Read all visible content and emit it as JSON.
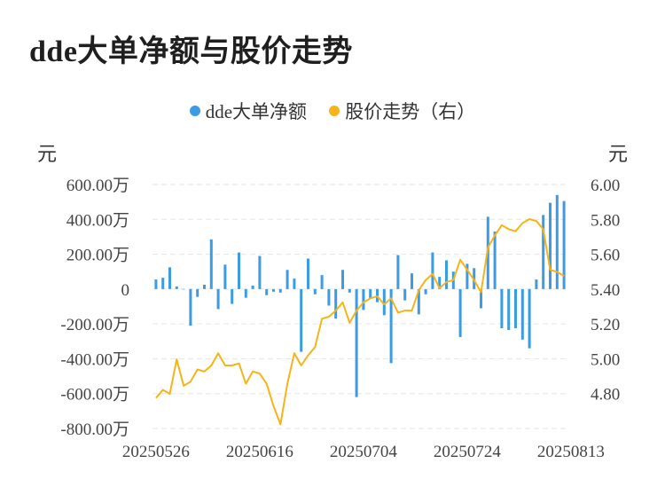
{
  "title": "dde大单净额与股价走势",
  "legend": [
    {
      "label": "dde大单净额",
      "color": "#3b9be3"
    },
    {
      "label": "股价走势（右）",
      "color": "#f4b41a"
    }
  ],
  "chart_data": {
    "type": "bar",
    "title": "dde大单净额与股价走势",
    "left_axis_unit": "元",
    "right_axis_unit": "元",
    "left_ylim": [
      -800,
      600
    ],
    "right_ylim": [
      4.8,
      6.0
    ],
    "left_ticks": [
      "600.00万",
      "400.00万",
      "200.00万",
      "0",
      "-200.00万",
      "-400.00万",
      "-600.00万",
      "-800.00万"
    ],
    "right_ticks": [
      "6.00",
      "5.80",
      "5.60",
      "5.40",
      "5.20",
      "5.00",
      "4.80"
    ],
    "x_tick_labels": [
      "20250526",
      "20250616",
      "20250704",
      "20250724",
      "20250813"
    ],
    "x_tick_index": [
      0,
      15,
      30,
      45,
      60
    ],
    "grid": true,
    "legend_position": "top-center",
    "series": [
      {
        "name": "dde大单净额",
        "kind": "bar",
        "axis": "left",
        "color": "#3b9be3",
        "values": [
          55,
          65,
          125,
          15,
          0,
          -210,
          -45,
          25,
          285,
          -115,
          140,
          -85,
          210,
          -50,
          20,
          190,
          -35,
          -15,
          -20,
          110,
          60,
          -360,
          175,
          -30,
          80,
          -95,
          -170,
          110,
          -20,
          -620,
          -120,
          -55,
          -75,
          -150,
          -425,
          195,
          -65,
          90,
          -145,
          -30,
          210,
          70,
          165,
          100,
          -275,
          145,
          120,
          -110,
          415,
          330,
          -225,
          -235,
          -225,
          -290,
          -340,
          55,
          425,
          495,
          540,
          505
        ]
      },
      {
        "name": "股价走势（右）",
        "kind": "line",
        "axis": "right",
        "color": "#f4b41a",
        "values": [
          4.95,
          4.99,
          4.97,
          5.14,
          5.01,
          5.03,
          5.09,
          5.08,
          5.11,
          5.17,
          5.11,
          5.11,
          5.12,
          5.02,
          5.08,
          5.07,
          5.02,
          4.91,
          4.82,
          5.02,
          5.17,
          5.11,
          5.16,
          5.2,
          5.34,
          5.35,
          5.38,
          5.42,
          5.32,
          5.38,
          5.42,
          5.44,
          5.45,
          5.41,
          5.44,
          5.37,
          5.38,
          5.38,
          5.48,
          5.53,
          5.56,
          5.49,
          5.52,
          5.53,
          5.63,
          5.58,
          5.53,
          5.47,
          5.69,
          5.75,
          5.8,
          5.78,
          5.77,
          5.81,
          5.83,
          5.82,
          5.78,
          5.58,
          5.57,
          5.55
        ]
      }
    ]
  }
}
